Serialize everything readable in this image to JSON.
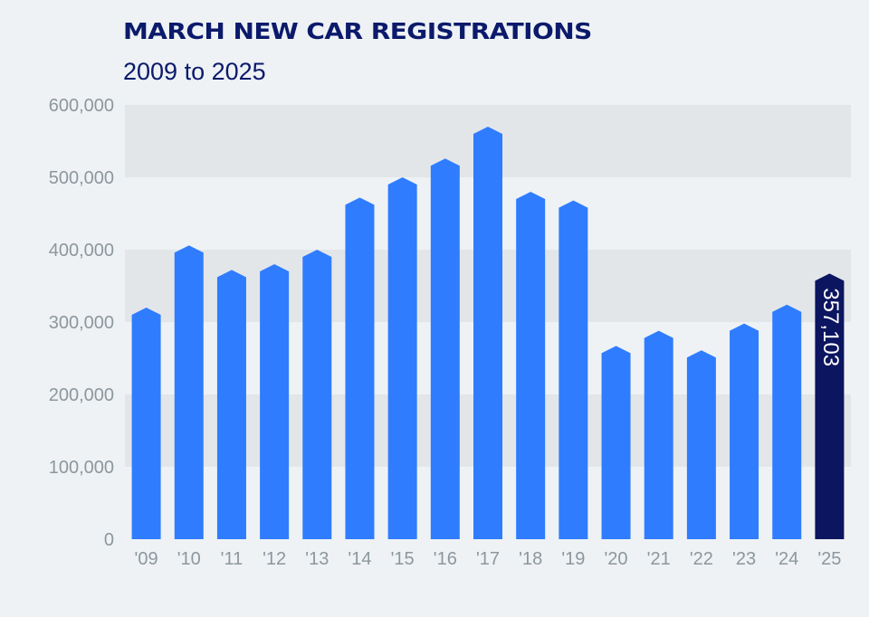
{
  "chart_data": {
    "type": "bar",
    "title": "MARCH NEW CAR REGISTRATIONS",
    "subtitle": "2009 to 2025",
    "xlabel": "",
    "ylabel": "",
    "ylim": [
      0,
      600000
    ],
    "yticks": [
      {
        "value": 0,
        "label": "0"
      },
      {
        "value": 100000,
        "label": "100,000"
      },
      {
        "value": 200000,
        "label": "200,000"
      },
      {
        "value": 300000,
        "label": "300,000"
      },
      {
        "value": 400000,
        "label": "400,000"
      },
      {
        "value": 500000,
        "label": "500,000"
      },
      {
        "value": 600000,
        "label": "600,000"
      }
    ],
    "categories": [
      "'09",
      "'10",
      "'11",
      "'12",
      "'13",
      "'14",
      "'15",
      "'16",
      "'17",
      "'18",
      "'19",
      "'20",
      "'21",
      "'22",
      "'23",
      "'24",
      "'25"
    ],
    "values": [
      310000,
      396000,
      362000,
      370000,
      390000,
      462000,
      490000,
      516000,
      560000,
      470000,
      458000,
      257000,
      278000,
      251000,
      288000,
      314000,
      357103
    ],
    "highlight_index": 16,
    "highlight_label": "357,103",
    "colors": {
      "bar": "#2f7cff",
      "highlight": "#0b1560",
      "band": "#e3e6e9",
      "background": "#eef2f5",
      "tick": "#8c979d",
      "title": "#0b1a6b"
    }
  }
}
